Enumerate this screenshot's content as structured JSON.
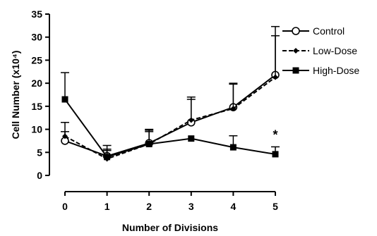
{
  "chart_data": {
    "type": "line",
    "xlabel": "Number of Divisions",
    "ylabel": "Cell Number (x10⁴)",
    "x": [
      0,
      1,
      2,
      3,
      4,
      5
    ],
    "xlim": [
      0,
      5
    ],
    "ylim": [
      0,
      35
    ],
    "xticks": [
      "0",
      "1",
      "2",
      "3",
      "4",
      "5"
    ],
    "yticks": [
      "0",
      "5",
      "10",
      "15",
      "20",
      "25",
      "30",
      "35"
    ],
    "grid": false,
    "legend_position": "top-right",
    "series": [
      {
        "name": "Control",
        "marker": "open-circle",
        "line": "solid",
        "values": [
          7.5,
          4.2,
          7.0,
          11.5,
          14.8,
          21.8
        ],
        "errors": [
          2.0,
          1.5,
          2.5,
          5.0,
          5.0,
          10.5
        ]
      },
      {
        "name": "Low-Dose",
        "marker": "filled-diamond",
        "line": "dashed",
        "values": [
          8.5,
          3.6,
          6.8,
          12.0,
          14.5,
          21.3
        ],
        "errors": [
          3.0,
          1.8,
          3.0,
          5.0,
          5.5,
          9.0
        ]
      },
      {
        "name": "High-Dose",
        "marker": "filled-square",
        "line": "solid",
        "values": [
          16.5,
          4.0,
          6.8,
          8.0,
          6.1,
          4.6
        ],
        "errors": [
          5.8,
          2.5,
          3.2,
          0.0,
          2.5,
          1.6
        ]
      }
    ],
    "annotations": [
      {
        "text": "*",
        "x": 5,
        "y": 8.8
      }
    ]
  }
}
